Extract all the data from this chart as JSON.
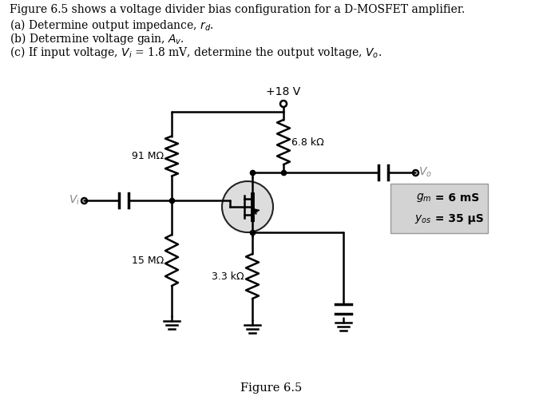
{
  "title_lines": [
    "Figure 6.5 shows a voltage divider bias configuration for a D-MOSFET amplifier.",
    "(a) Determine output impedance, r",
    "(b) Determine voltage gain, A",
    "(c) If input voltage, V"
  ],
  "title_subscripts": [
    "d",
    "v",
    "i"
  ],
  "caption": "Figure 6.5",
  "labels": {
    "vcc": "+18 V",
    "r1": "91 MΩ",
    "rd": "6.8 kΩ",
    "r2": "15 MΩ",
    "rs": "3.3 kΩ",
    "vi": "V",
    "vi_sub": "i",
    "vo": "V",
    "vo_sub": "o",
    "gm": "g",
    "gm_sub": "m",
    "gm_val": " = 6 mS",
    "yos": "y",
    "yos_sub": "os",
    "yos_val": " = 35 μS"
  },
  "background_color": "#ffffff",
  "text_color": "#000000",
  "box_color": "#d3d3d3"
}
